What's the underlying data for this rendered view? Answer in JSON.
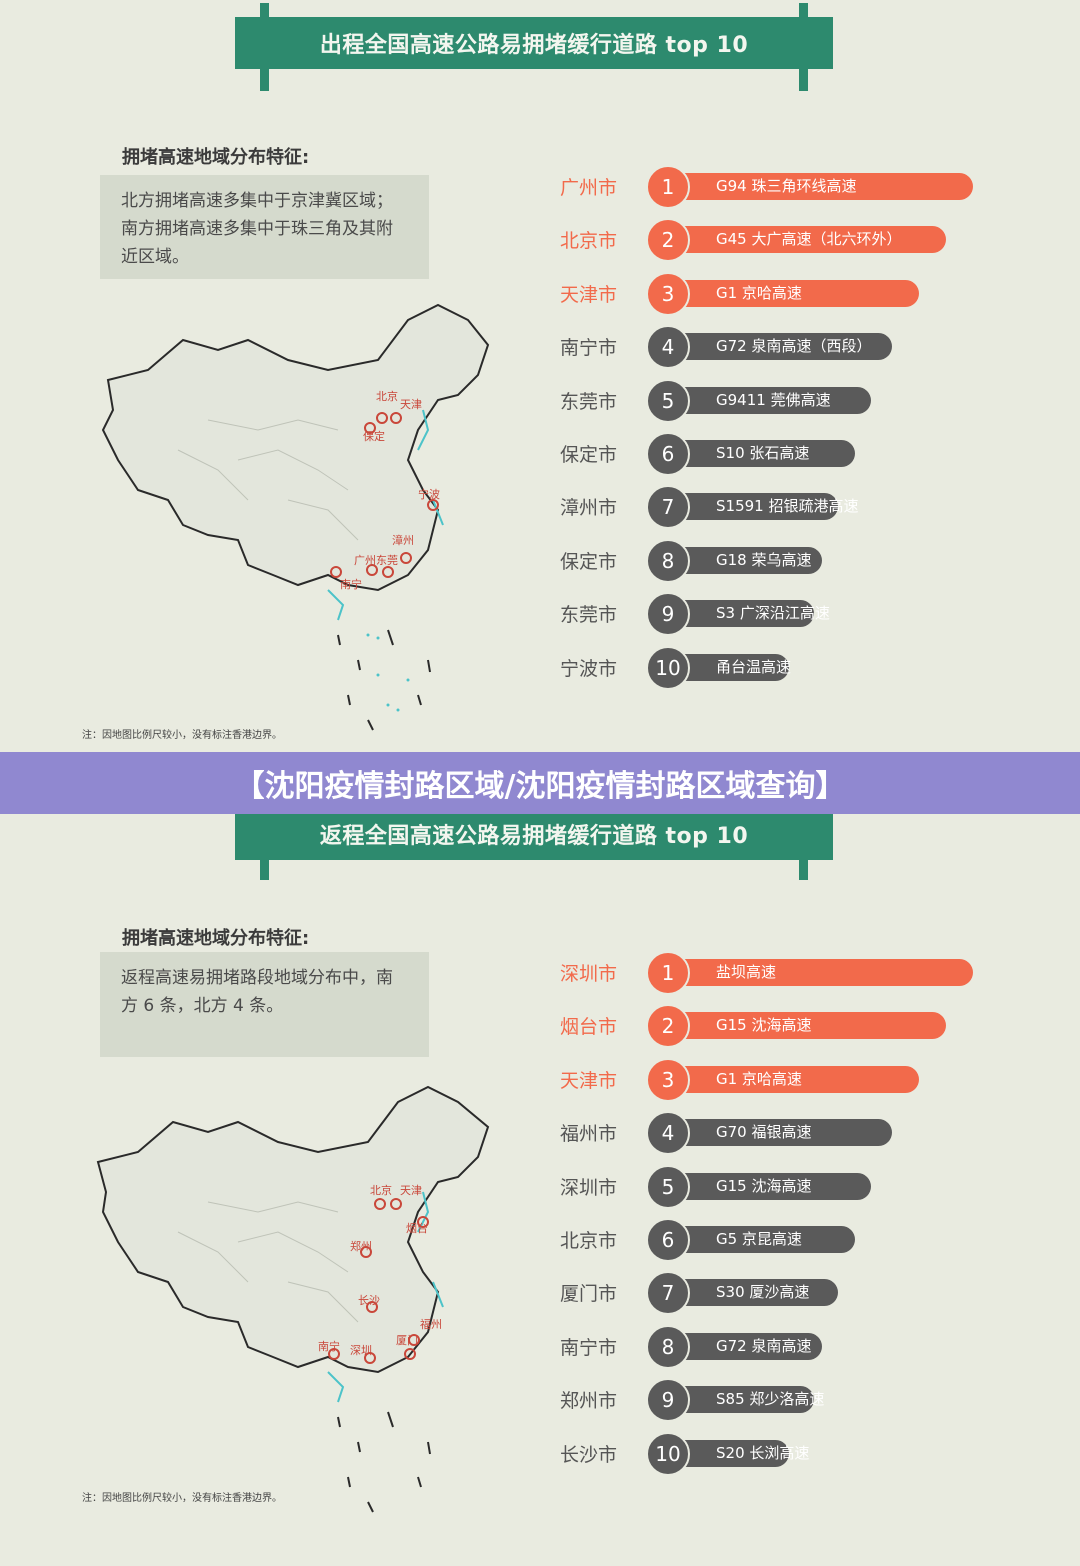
{
  "overlay_title": "【沈阳疫情封路区域/沈阳疫情封路区域查询】",
  "colors": {
    "accent_green": "#2d8a6e",
    "hot": "#f26a4b",
    "dark": "#5a5a5a",
    "overlay": "#9088d0"
  },
  "outbound": {
    "banner_title": "出程全国高速公路易拥堵缓行道路 top 10",
    "feature_title": "拥堵高速地域分布特征:",
    "feature_text": "北方拥堵高速多集中于京津冀区域；南方拥堵高速多集中于珠三角及其附近区域。",
    "map_note": "注：因地图比例尺较小，没有标注香港边界。",
    "map_labels": [
      "北京",
      "保定",
      "天津",
      "宁波",
      "漳州",
      "南宁",
      "广州",
      "东莞"
    ],
    "items": [
      {
        "rank": "1",
        "city": "广州市",
        "road": "G94 珠三角环线高速"
      },
      {
        "rank": "2",
        "city": "北京市",
        "road": "G45 大广高速（北六环外）"
      },
      {
        "rank": "3",
        "city": "天津市",
        "road": "G1 京哈高速"
      },
      {
        "rank": "4",
        "city": "南宁市",
        "road": "G72 泉南高速（西段）"
      },
      {
        "rank": "5",
        "city": "东莞市",
        "road": "G9411 莞佛高速"
      },
      {
        "rank": "6",
        "city": "保定市",
        "road": "S10 张石高速"
      },
      {
        "rank": "7",
        "city": "漳州市",
        "road": "S1591 招银疏港高速"
      },
      {
        "rank": "8",
        "city": "保定市",
        "road": "G18 荣乌高速"
      },
      {
        "rank": "9",
        "city": "东莞市",
        "road": "S3 广深沿江高速"
      },
      {
        "rank": "10",
        "city": "宁波市",
        "road": "甬台温高速"
      }
    ]
  },
  "return": {
    "banner_title": "返程全国高速公路易拥堵缓行道路 top 10",
    "feature_title": "拥堵高速地域分布特征:",
    "feature_text": "返程高速易拥堵路段地域分布中，南方 6 条，北方 4 条。",
    "map_note": "注：因地图比例尺较小，没有标注香港边界。",
    "map_labels": [
      "北京",
      "天津",
      "烟台",
      "郑州",
      "长沙",
      "福州",
      "厦门",
      "南宁",
      "深圳"
    ],
    "items": [
      {
        "rank": "1",
        "city": "深圳市",
        "road": "盐坝高速"
      },
      {
        "rank": "2",
        "city": "烟台市",
        "road": "G15 沈海高速"
      },
      {
        "rank": "3",
        "city": "天津市",
        "road": "G1 京哈高速"
      },
      {
        "rank": "4",
        "city": "福州市",
        "road": "G70 福银高速"
      },
      {
        "rank": "5",
        "city": "深圳市",
        "road": "G15 沈海高速"
      },
      {
        "rank": "6",
        "city": "北京市",
        "road": "G5 京昆高速"
      },
      {
        "rank": "7",
        "city": "厦门市",
        "road": "S30 厦沙高速"
      },
      {
        "rank": "8",
        "city": "南宁市",
        "road": "G72 泉南高速"
      },
      {
        "rank": "9",
        "city": "郑州市",
        "road": "S85 郑少洛高速"
      },
      {
        "rank": "10",
        "city": "长沙市",
        "road": "S20 长浏高速"
      }
    ]
  }
}
